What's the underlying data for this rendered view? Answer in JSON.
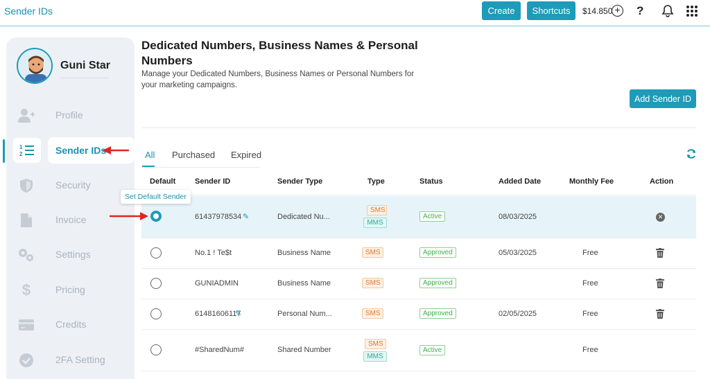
{
  "header": {
    "app_title": "Sender IDs",
    "create_label": "Create",
    "shortcuts_label": "Shortcuts",
    "balance": "$14.850",
    "help": "?"
  },
  "sidebar": {
    "user_name": "Guni Star",
    "items": [
      {
        "label": "Profile",
        "icon": "add-user-icon"
      },
      {
        "label": "Sender IDs",
        "icon": "numbered-list-icon",
        "active": true
      },
      {
        "label": "Security",
        "icon": "shield-icon"
      },
      {
        "label": "Invoice",
        "icon": "document-icon"
      },
      {
        "label": "Settings",
        "icon": "gears-icon"
      },
      {
        "label": "Pricing",
        "icon": "dollar-icon"
      },
      {
        "label": "Credits",
        "icon": "credit-card-icon"
      },
      {
        "label": "2FA Setting",
        "icon": "check-circle-icon"
      }
    ]
  },
  "main": {
    "title": "Dedicated Numbers, Business Names & Personal Numbers",
    "description": "Manage your Dedicated Numbers, Business Names or Personal Numbers for your marketing campaigns.",
    "add_button": "Add Sender ID",
    "tabs": [
      {
        "label": "All",
        "active": true
      },
      {
        "label": "Purchased"
      },
      {
        "label": "Expired"
      }
    ],
    "tooltip": "Set Default Sender",
    "columns": [
      "Default",
      "Sender ID",
      "Sender Type",
      "Type",
      "Status",
      "Added Date",
      "Monthly Fee",
      "Action"
    ],
    "rows": [
      {
        "default": true,
        "sender_id": "61437978534",
        "editable": true,
        "sender_type": "Dedicated Nu...",
        "types": [
          "SMS",
          "MMS"
        ],
        "status": "Active",
        "added_date": "08/03/2025",
        "monthly_fee": "",
        "action": "remove"
      },
      {
        "default": false,
        "sender_id": "No.1 ! Te$t",
        "editable": false,
        "sender_type": "Business Name",
        "types": [
          "SMS"
        ],
        "status": "Approved",
        "added_date": "05/03/2025",
        "monthly_fee": "Free",
        "action": "delete"
      },
      {
        "default": false,
        "sender_id": "GUNIADMIN",
        "editable": false,
        "sender_type": "Business Name",
        "types": [
          "SMS"
        ],
        "status": "Approved",
        "added_date": "",
        "monthly_fee": "Free",
        "action": "delete"
      },
      {
        "default": false,
        "sender_id": "61481606117",
        "editable": true,
        "sender_type": "Personal Num...",
        "types": [
          "SMS"
        ],
        "status": "Approved",
        "added_date": "02/05/2025",
        "monthly_fee": "Free",
        "action": "delete"
      },
      {
        "default": false,
        "sender_id": "#SharedNum#",
        "editable": false,
        "sender_type": "Shared Number",
        "types": [
          "SMS",
          "MMS"
        ],
        "status": "Active",
        "added_date": "",
        "monthly_fee": "Free",
        "action": ""
      }
    ]
  },
  "colors": {
    "accent": "#1e9bb8",
    "annotation_arrow": "#e02424"
  }
}
